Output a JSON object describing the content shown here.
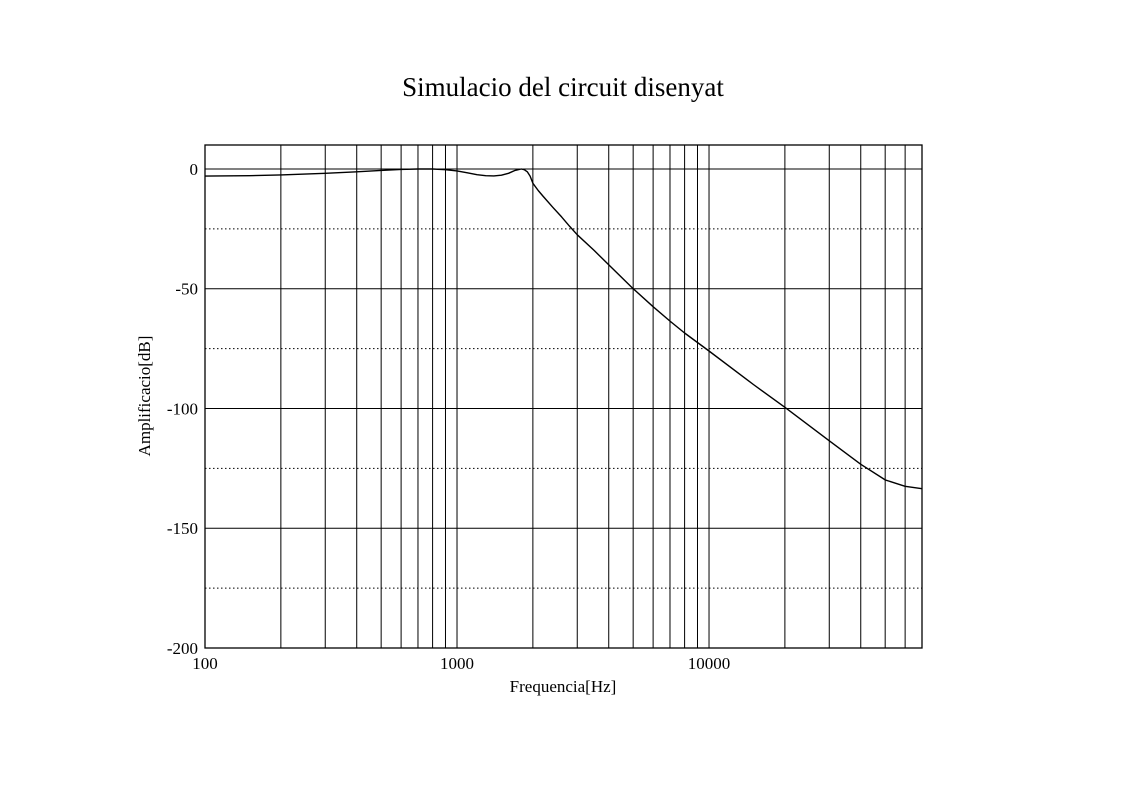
{
  "chart_data": {
    "type": "line",
    "title": "Simulacio del circuit disenyat",
    "xlabel": "Frequencia[Hz]",
    "ylabel": "Amplificacio[dB]",
    "x_scale": "log",
    "xlim": [
      100,
      70000
    ],
    "ylim": [
      -200,
      10
    ],
    "x_tick_labels": [
      "100",
      "1000",
      "10000"
    ],
    "x_tick_values": [
      100,
      1000,
      10000
    ],
    "y_tick_labels": [
      "0",
      "-50",
      "-100",
      "-150",
      "-200"
    ],
    "y_tick_values": [
      0,
      -50,
      -100,
      -150,
      -200
    ],
    "y_minor_dotted_values": [
      -25,
      -75,
      -125,
      -175
    ],
    "grid": true,
    "legend": "none",
    "series": [
      {
        "x": [
          100,
          150,
          200,
          300,
          400,
          500,
          600,
          700,
          800,
          900,
          1000,
          1100,
          1200,
          1300,
          1400,
          1500,
          1600,
          1700,
          1800,
          1850,
          1900,
          1950,
          2000,
          2100,
          2200,
          2400,
          2600,
          2800,
          3000,
          3500,
          4000,
          5000,
          6000,
          7000,
          8000,
          10000,
          15000,
          20000,
          30000,
          40000,
          50000,
          60000,
          70000
        ],
        "y": [
          -3,
          -2.8,
          -2.5,
          -1.8,
          -1.2,
          -0.6,
          -0.2,
          0,
          0,
          -0.3,
          -0.8,
          -1.6,
          -2.4,
          -2.8,
          -2.9,
          -2.6,
          -1.8,
          -0.6,
          0,
          -0.3,
          -1.2,
          -3,
          -6,
          -9,
          -11.5,
          -16,
          -20,
          -24,
          -27.5,
          -34,
          -40,
          -50,
          -57.5,
          -63.5,
          -68.5,
          -76,
          -90,
          -99.5,
          -113.5,
          -123.3,
          -129.8,
          -132.5,
          -133.5
        ]
      }
    ]
  },
  "colors": {
    "line": "#000000",
    "grid": "#000000",
    "background": "#ffffff"
  }
}
